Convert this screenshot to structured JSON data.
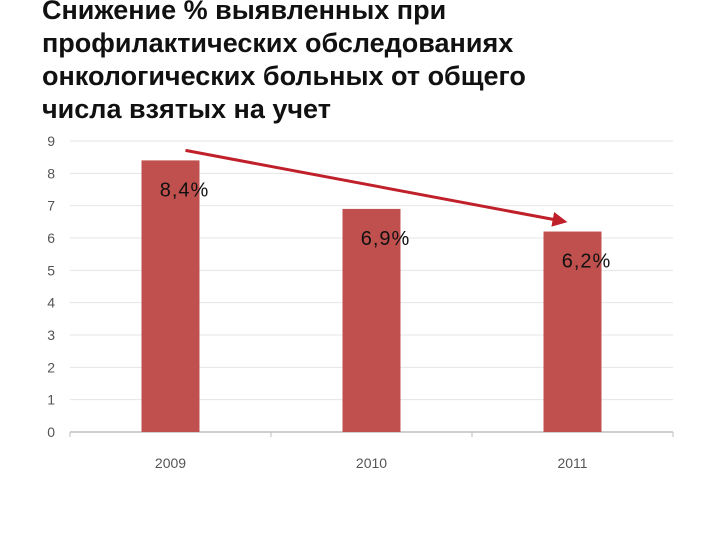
{
  "title": "Снижение % выявленных при\nпрофилактических обследованиях\nонкологических больных от общего\nчисла взятых на учет",
  "chart_data": {
    "type": "bar",
    "categories": [
      "2009",
      "2010",
      "2011"
    ],
    "series": [
      {
        "values": [
          8.4,
          6.9,
          6.2
        ],
        "labels": [
          "8,4%",
          "6,9%",
          "6,2%"
        ]
      }
    ],
    "y_ticks": [
      "0",
      "1",
      "2",
      "3",
      "4",
      "5",
      "6",
      "7",
      "8",
      "9"
    ],
    "ylim": [
      0,
      9
    ],
    "grid": true,
    "legend": "none",
    "annotation": "trend-arrow-down",
    "colors": {
      "bar": "#c0504d",
      "arrow": "#c0202a",
      "grid": "#e4e4e4",
      "axis": "#bfbfbf",
      "tick_text": "#555555"
    }
  }
}
